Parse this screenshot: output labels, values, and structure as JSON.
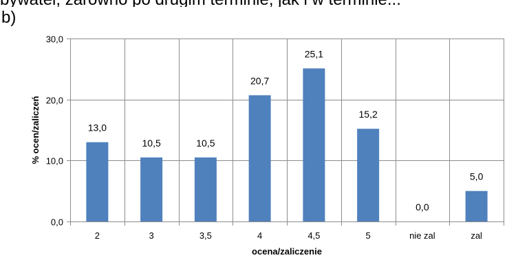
{
  "header": {
    "top_line": "bywatel, zarówno po drugim terminie, jak i w terminie...",
    "panel_label": "b)"
  },
  "chart_data": {
    "type": "bar",
    "categories": [
      "2",
      "3",
      "3,5",
      "4",
      "4,5",
      "5",
      "nie zal",
      "zal"
    ],
    "values": [
      13.0,
      10.5,
      10.5,
      20.7,
      25.1,
      15.2,
      0.0,
      5.0
    ],
    "value_labels": [
      "13,0",
      "10,5",
      "10,5",
      "20,7",
      "25,1",
      "15,2",
      "0,0",
      "5,0"
    ],
    "ylim": [
      0,
      30
    ],
    "yticks": [
      "0,0",
      "10,0",
      "20,0",
      "30,0"
    ],
    "xlabel": "ocena/zaliczenie",
    "ylabel": "% ocen/zaliczeń",
    "bar_color": "#4F81BD",
    "grid": "vertical-and-horizontal"
  }
}
